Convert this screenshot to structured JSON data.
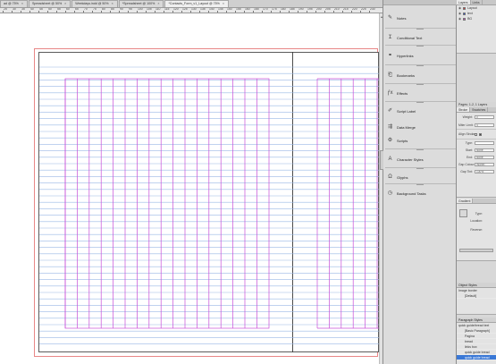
{
  "tabs": [
    {
      "label": "ad @ 75%",
      "active": false
    },
    {
      "label": "Spreadsheet @ 50%",
      "active": false
    },
    {
      "label": "Weekdays.indd @ 50%",
      "active": false
    },
    {
      "label": "*Spreadsheet @ 100%",
      "active": false
    },
    {
      "label": "*Contacts_Form_v1_Layout @ 75%",
      "active": true
    }
  ],
  "ruler": {
    "labels": [
      "25",
      "30",
      "35",
      "40",
      "45",
      "50",
      "55",
      "60",
      "65",
      "70",
      "75",
      "80",
      "85",
      "90",
      "95",
      "100",
      "105",
      "110",
      "115",
      "120",
      "125",
      "130",
      "135",
      "140",
      "145",
      "150",
      "155",
      "160",
      "165",
      "170",
      "175",
      "180",
      "185",
      "190",
      "195",
      "200",
      "205",
      "210",
      "215",
      "220",
      "225",
      "230"
    ]
  },
  "panel_icons": [
    {
      "label": "Notes",
      "icon": "notes-icon"
    },
    {
      "label": "Conditional Text",
      "icon": "conditional-text-icon"
    },
    {
      "label": "Hyperlinks",
      "icon": "hyperlinks-icon"
    },
    {
      "label": "Bookmarks",
      "icon": "bookmarks-icon"
    },
    {
      "label": "Effects",
      "icon": "effects-icon"
    },
    {
      "label": "Script Label",
      "icon": "script-label-icon"
    },
    {
      "label": "Data Merge",
      "icon": "data-merge-icon"
    },
    {
      "label": "Scripts",
      "icon": "scripts-icon"
    },
    {
      "label": "Character Styles",
      "icon": "character-styles-icon"
    },
    {
      "label": "Glyphs",
      "icon": "glyphs-icon"
    },
    {
      "label": "Background Tasks",
      "icon": "background-tasks-icon"
    }
  ],
  "layers": {
    "tabs": [
      "Layers",
      "Links"
    ],
    "items": [
      {
        "name": "Layout",
        "color": "#e03030"
      },
      {
        "name": "text",
        "color": "#2a50d8"
      },
      {
        "name": "BG",
        "color": "#d040b8"
      }
    ]
  },
  "stroke": {
    "header": "Pages: 1-2, 1 Layers",
    "tabs": [
      "Stroke",
      "Swatches"
    ],
    "rows": [
      {
        "label": "Weight:",
        "value": "0"
      },
      {
        "label": "Miter Limit:",
        "value": "4"
      }
    ],
    "align_label": "Align Stroke:",
    "type_rows": [
      {
        "label": "Type:",
        "value": ""
      },
      {
        "label": "Start:",
        "value": "None"
      },
      {
        "label": "End:",
        "value": "None"
      },
      {
        "label": "Gap Colour:",
        "value": "[None]"
      },
      {
        "label": "Gap Tint:",
        "value": "100%"
      }
    ]
  },
  "gradient": {
    "tabs": [
      "Gradient"
    ],
    "labels": [
      "Type:",
      "Location:",
      "Reverse:"
    ]
  },
  "object_styles": {
    "header": "Object Styles",
    "sub": "Image border",
    "items": [
      "[Default]"
    ]
  },
  "paragraph_styles": {
    "header": "Paragraph Styles",
    "sub": "quick guide/bread text",
    "items": [
      "[Basic Paragraph]",
      "Pagina",
      "bread",
      "links box",
      "quick guide bread",
      "quick guide bread"
    ],
    "selected_index": 5
  }
}
